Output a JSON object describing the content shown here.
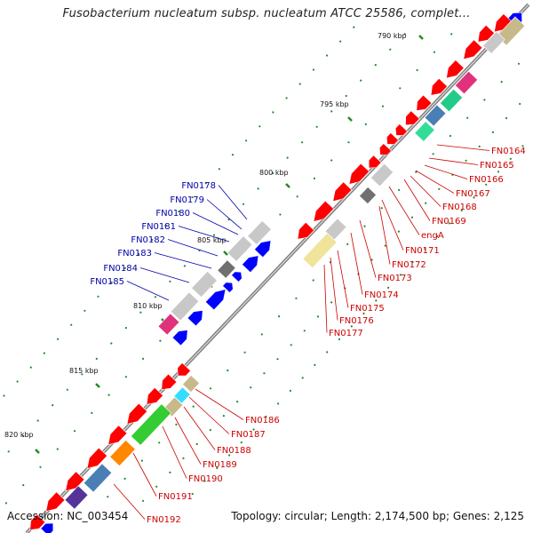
{
  "title": "Fusobacterium nucleatum subsp. nucleatum ATCC 25586, complet...",
  "accession": "Accession: NC_003454",
  "topology": "Topology: circular; Length: 2,174,500 bp; Genes: 2,125",
  "colors": {
    "cds": "#ff0000",
    "reverse_strand_gene": "#0000ff",
    "forward_label": "#cc0000",
    "reverse_label": "#0000aa",
    "backbone": "#888888",
    "tick_dot": "#228b22"
  },
  "ticks": [
    "790 kbp",
    "795 kbp",
    "800 kbp",
    "805 kbp",
    "810 kbp",
    "815 kbp",
    "820 kbp"
  ],
  "labels_forward_1": [
    "FN0164",
    "FN0165",
    "FN0166",
    "FN0167",
    "FN0168",
    "FN0169",
    "engA",
    "FN0171",
    "FN0172",
    "FN0173",
    "FN0174",
    "FN0175",
    "FN0176",
    "FN0177"
  ],
  "labels_reverse": [
    "FN0178",
    "FN0179",
    "FN0180",
    "FN0181",
    "FN0182",
    "FN0183",
    "FN0184",
    "FN0185"
  ],
  "labels_forward_2": [
    "FN0186",
    "FN0187",
    "FN0188",
    "FN0189",
    "FN0190",
    "FN0191",
    "FN0192"
  ]
}
